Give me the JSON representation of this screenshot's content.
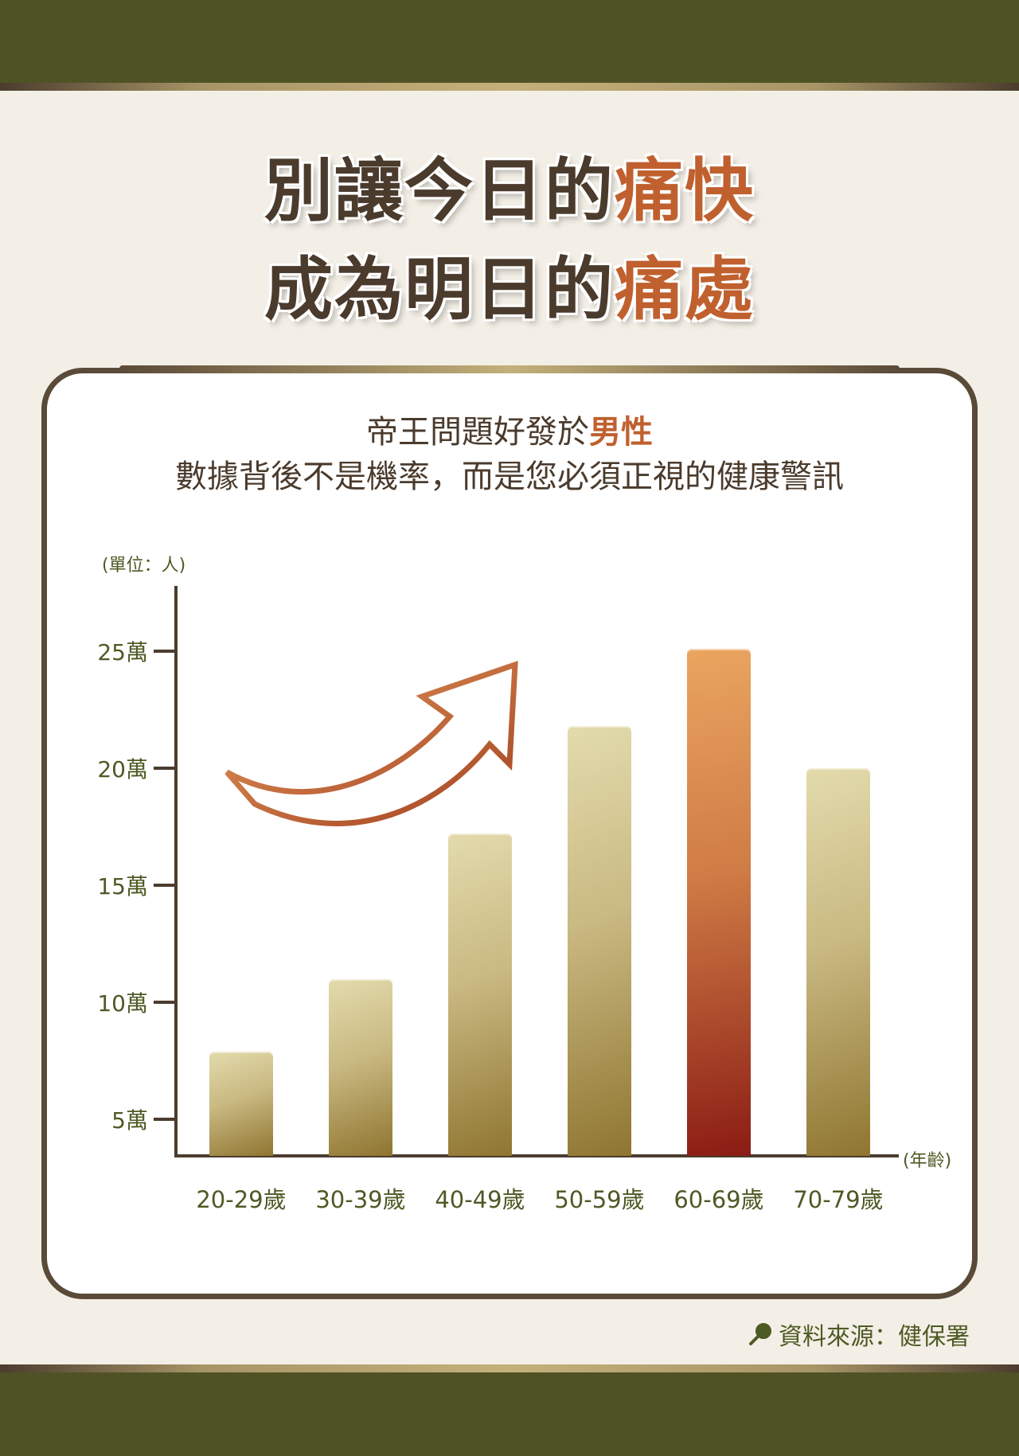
{
  "headline": {
    "line1_prefix": "別讓今日的",
    "line1_accent": "痛快",
    "line2_prefix": "成為明日的",
    "line2_accent": "痛處"
  },
  "subtitle": {
    "line1_prefix": "帝王問題好發於",
    "line1_accent": "男性",
    "line2": "數據背後不是機率，而是您必須正視的健康警訊"
  },
  "source": {
    "icon": "magnifier-icon",
    "text": "資料來源：健保署"
  },
  "colors": {
    "band": "#4f5225",
    "background": "#f3efe6",
    "text_dark": "#4b3b2d",
    "accent": "#c0602f",
    "axis_label": "#4e5a25",
    "bar_gold": "#c9b982",
    "bar_highlight": "#cf7b45"
  },
  "chart_data": {
    "type": "bar",
    "title": "帝王問題好發於男性",
    "subtitle": "數據背後不是機率，而是您必須正視的健康警訊",
    "ylabel": "(單位：人)",
    "xlabel": "(年齡)",
    "categories": [
      "20-29歲",
      "30-39歲",
      "40-49歲",
      "50-59歲",
      "60-69歲",
      "70-79歲"
    ],
    "values": [
      79000,
      110000,
      172000,
      218000,
      251000,
      200000
    ],
    "highlight_index": 4,
    "yticks": [
      50000,
      100000,
      150000,
      200000,
      250000
    ],
    "ytick_labels": [
      "5萬",
      "10萬",
      "15萬",
      "20萬",
      "25萬"
    ],
    "ylim": [
      34000,
      290000
    ],
    "grid": false,
    "legend": "none",
    "annotations": [
      "upward trend arrow"
    ]
  }
}
